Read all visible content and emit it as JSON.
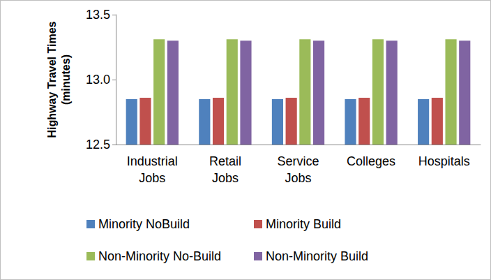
{
  "chart_data": {
    "type": "bar",
    "y_label": "Highway Travel Times\n(minutes)",
    "categories": [
      "Industrial\nJobs",
      "Retail\nJobs",
      "Service\nJobs",
      "Colleges",
      "Hospitals"
    ],
    "series": [
      {
        "name": "Minority NoBuild",
        "color": "#4f81bd",
        "values": [
          12.85,
          12.85,
          12.85,
          12.85,
          12.85
        ]
      },
      {
        "name": "Minority Build",
        "color": "#c0504d",
        "values": [
          12.86,
          12.86,
          12.86,
          12.86,
          12.86
        ]
      },
      {
        "name": "Non-Minority No-Build",
        "color": "#9bbb59",
        "values": [
          13.31,
          13.31,
          13.31,
          13.31,
          13.31
        ]
      },
      {
        "name": "Non-Minority Build",
        "color": "#8064a2",
        "values": [
          13.3,
          13.3,
          13.3,
          13.3,
          13.3
        ]
      }
    ],
    "ylim": [
      12.5,
      13.5
    ],
    "yticks": [
      {
        "value": 12.5,
        "label": "12.5"
      },
      {
        "value": 13,
        "label": "13.0"
      },
      {
        "value": 13.5,
        "label": "13.5"
      }
    ],
    "grid": false,
    "legend": "bottom"
  }
}
